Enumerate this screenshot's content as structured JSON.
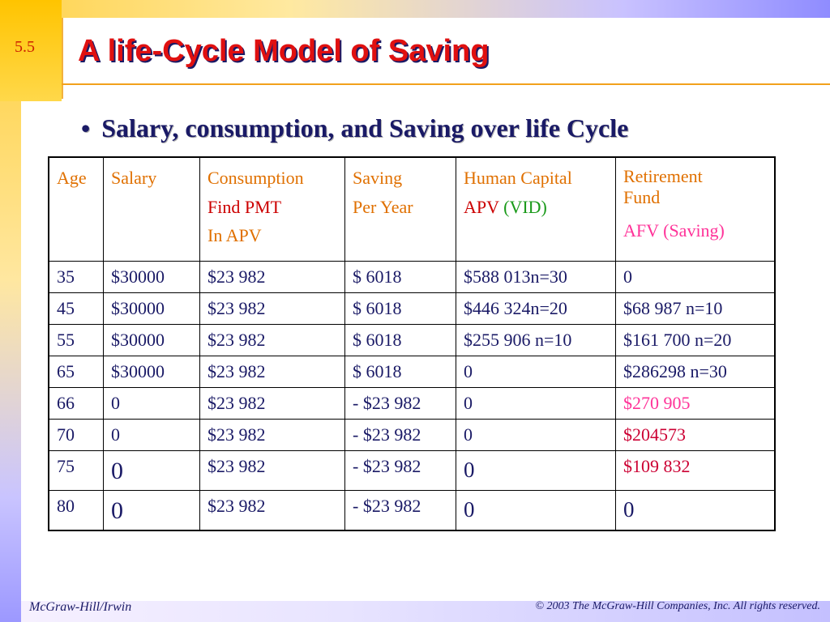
{
  "slide": {
    "number": "5.5",
    "title": "A life-Cycle Model of Saving",
    "bullet": "Salary, consumption, and Saving over life Cycle",
    "bullet_marker": "•"
  },
  "table": {
    "header": {
      "age": "Age",
      "salary": "Salary",
      "consumption": [
        "Consumption",
        "Find PMT",
        "In APV"
      ],
      "saving": [
        "Saving",
        "Per Year"
      ],
      "human_capital_title": "Human Capital",
      "human_capital_apv": "APV",
      "human_capital_vid": "(VID)",
      "retirement_title_1": "Retirement",
      "retirement_title_2": "Fund",
      "retirement_afv": "AFV (Saving)"
    },
    "rows": [
      {
        "age": "35",
        "salary": "$30000",
        "consumption": "$23 982",
        "saving": "$ 6018",
        "human_capital": "$588 013n=30",
        "retirement": "0"
      },
      {
        "age": "45",
        "salary": "$30000",
        "consumption": "$23 982",
        "saving": "$ 6018",
        "human_capital": "$446 324n=20",
        "retirement": "$68 987 n=10"
      },
      {
        "age": "55",
        "salary": "$30000",
        "consumption": "$23 982",
        "saving": "$ 6018",
        "human_capital": "$255 906 n=10",
        "retirement": "$161 700 n=20"
      },
      {
        "age": "65",
        "salary": "$30000",
        "consumption": "$23 982",
        "saving": "$ 6018",
        "human_capital": "0",
        "retirement": "$286298 n=30"
      },
      {
        "age": "66",
        "salary": "0",
        "consumption": "$23 982",
        "saving": "- $23 982",
        "human_capital": "0",
        "retirement": "$270 905"
      },
      {
        "age": "70",
        "salary": "0",
        "consumption": "$23 982",
        "saving": "- $23 982",
        "human_capital": "0",
        "retirement": "$204573"
      },
      {
        "age": "75",
        "salary": "0",
        "consumption": "$23 982",
        "saving": "- $23 982",
        "human_capital": "0",
        "retirement": "$109 832"
      },
      {
        "age": "80",
        "salary": "0",
        "consumption": "$23 982",
        "saving": "- $23 982",
        "human_capital": "0",
        "retirement": "0"
      }
    ]
  },
  "footer": {
    "publisher": "McGraw-Hill/Irwin",
    "copyright": "© 2003 The McGraw-Hill Companies, Inc. All rights reserved."
  },
  "colors": {
    "title": "#e01010",
    "header_orange": "#e07000",
    "apv_red": "#cc0000",
    "vid_green": "#1a9a1a",
    "afv_pink": "#ff3399",
    "body_navy": "#1a1a66"
  }
}
